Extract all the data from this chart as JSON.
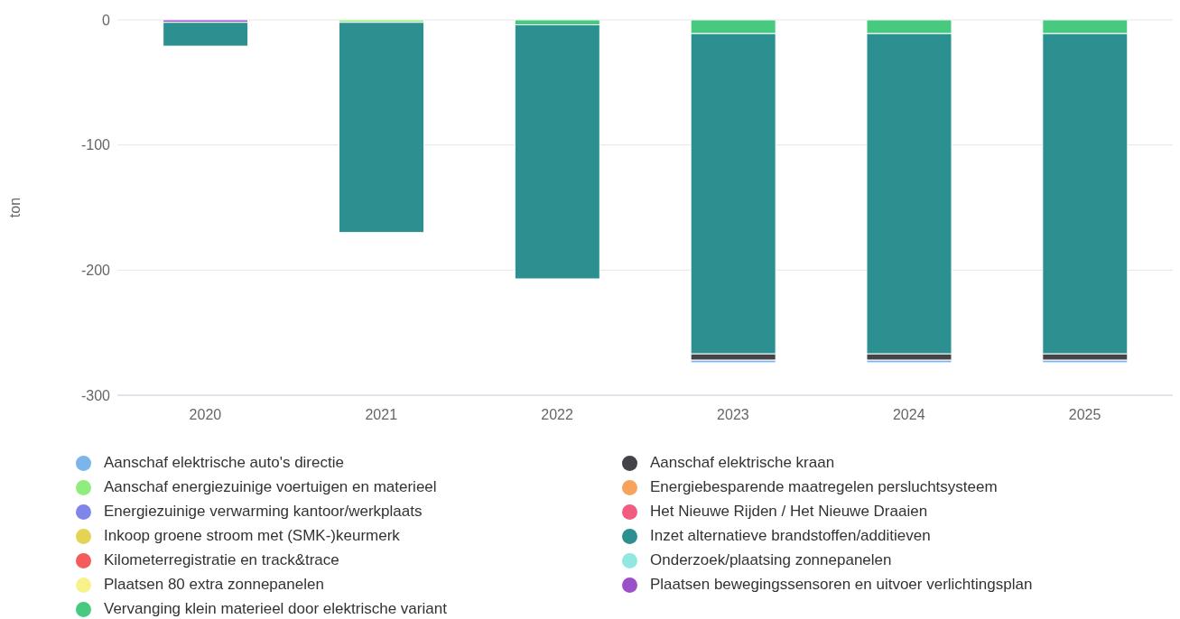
{
  "chart_data": {
    "type": "bar",
    "stacked": true,
    "ylabel": "ton",
    "categories": [
      "2020",
      "2021",
      "2022",
      "2023",
      "2024",
      "2025"
    ],
    "ylim": [
      -300,
      0
    ],
    "yticks": [
      -300,
      -200,
      -100,
      0
    ],
    "grid": "y",
    "legend": "bottom",
    "series": [
      {
        "name": "Vervanging klein materieel door elektrische variant",
        "color": "#47c97f",
        "values": [
          null,
          null,
          -4,
          -11,
          -11,
          -11
        ]
      },
      {
        "name": "Plaatsen bewegingssensoren en uitvoer verlichtingsplan",
        "color": "#9b4fc8",
        "values": [
          -2,
          null,
          null,
          null,
          null,
          null
        ]
      },
      {
        "name": "Aanschaf energiezuinige voertuigen en materieel",
        "color": "#90ed7d",
        "values": [
          null,
          -2,
          null,
          null,
          null,
          null
        ]
      },
      {
        "name": "Plaatsen 80 extra zonnepanelen",
        "color": "#f7f38a",
        "values": [
          null,
          null,
          null,
          null,
          null,
          null
        ]
      },
      {
        "name": "Onderzoek/plaatsing zonnepanelen",
        "color": "#91e8e1",
        "values": [
          null,
          null,
          null,
          null,
          null,
          null
        ]
      },
      {
        "name": "Kilometerregistratie en track&trace",
        "color": "#f45b5b",
        "values": [
          null,
          null,
          null,
          null,
          null,
          null
        ]
      },
      {
        "name": "Inzet alternatieve brandstoffen/additieven",
        "color": "#2b908f",
        "values": [
          -19,
          -168,
          -203,
          -256,
          -256,
          -256
        ]
      },
      {
        "name": "Inkoop groene stroom met (SMK-)keurmerk",
        "color": "#e4d354",
        "values": [
          null,
          null,
          null,
          null,
          null,
          null
        ]
      },
      {
        "name": "Het Nieuwe Rijden / Het Nieuwe Draaien",
        "color": "#f15c80",
        "values": [
          null,
          null,
          null,
          null,
          null,
          null
        ]
      },
      {
        "name": "Energiezuinige verwarming kantoor/werkplaats",
        "color": "#8085e9",
        "values": [
          null,
          null,
          null,
          null,
          null,
          null
        ]
      },
      {
        "name": "Energiebesparende maatregelen persluchtsysteem",
        "color": "#f7a35c",
        "values": [
          null,
          null,
          null,
          null,
          null,
          null
        ]
      },
      {
        "name": "Aanschaf elektrische kraan",
        "color": "#434348",
        "values": [
          null,
          null,
          null,
          -5,
          -5,
          -5
        ]
      },
      {
        "name": "Aanschaf elektrische auto's directie",
        "color": "#7cb5ec",
        "values": [
          null,
          null,
          null,
          -2,
          -2,
          -2
        ]
      }
    ]
  }
}
